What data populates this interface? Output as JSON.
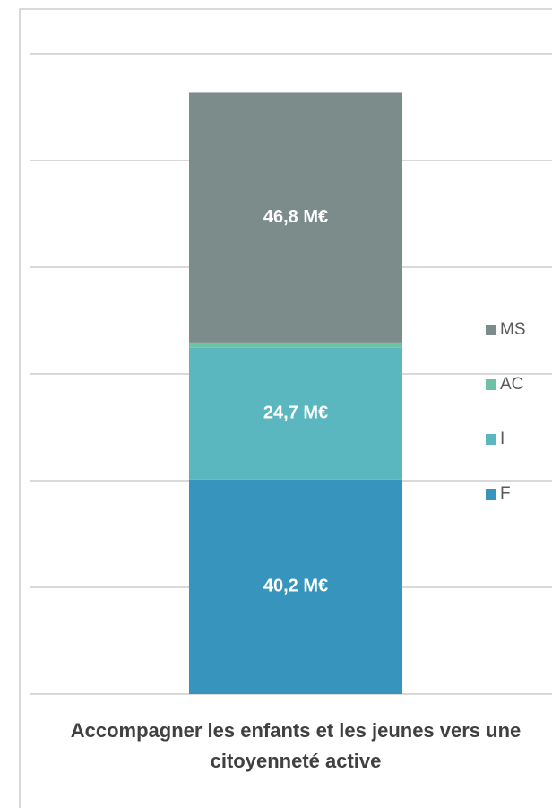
{
  "chart_data": {
    "type": "stacked_bar",
    "categories": [
      "Accompagner les enfants et les jeunes vers une citoyenneté active"
    ],
    "series": [
      {
        "name": "F",
        "color": "#3795bd",
        "values": [
          40.2
        ],
        "value_labels": [
          "40,2 M€"
        ]
      },
      {
        "name": "I",
        "color": "#5ab7c0",
        "values": [
          24.7
        ],
        "value_labels": [
          "24,7 M€"
        ]
      },
      {
        "name": "AC",
        "color": "#6ec1a5",
        "values": [
          1.0
        ]
      },
      {
        "name": "MS",
        "color": "#7b8c8b",
        "values": [
          46.8
        ],
        "value_labels": [
          "46,8 M€"
        ]
      }
    ],
    "ylim": [
      0,
      120
    ],
    "yticks": [
      0,
      20,
      40,
      60,
      80,
      100,
      120
    ],
    "grid": true
  }
}
